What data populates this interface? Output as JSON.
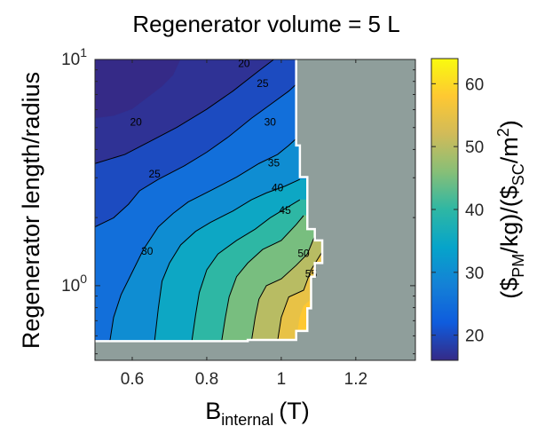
{
  "chart_data": {
    "type": "heatmap",
    "title": "Regenerator volume = 5 L",
    "xlabel": {
      "main": "B",
      "sub": "internal",
      "unit": "(T)"
    },
    "ylabel": "Regenerator length/radius",
    "colorbar_label": {
      "p1": "($",
      "s1": "PM",
      "p2": "/kg)/($",
      "s2": "SC",
      "p3": "/m",
      "sup": "2",
      "p4": ")"
    },
    "xlim": [
      0.5,
      1.36
    ],
    "ylim_log10": [
      -0.33,
      1.0
    ],
    "yscale": "log",
    "colormap": "parula",
    "clim": [
      16,
      64
    ],
    "x_ticks": [
      {
        "value": 0.6,
        "label": "0.6"
      },
      {
        "value": 0.8,
        "label": "0.8"
      },
      {
        "value": 1.0,
        "label": "1"
      },
      {
        "value": 1.2,
        "label": "1.2"
      }
    ],
    "y_ticks": [
      {
        "log": 0,
        "base": "10",
        "exp": "0"
      },
      {
        "log": 1,
        "base": "10",
        "exp": "1"
      }
    ],
    "colorbar_ticks": [
      {
        "value": 20,
        "label": "20"
      },
      {
        "value": 30,
        "label": "30"
      },
      {
        "value": 40,
        "label": "40"
      },
      {
        "value": 50,
        "label": "50"
      },
      {
        "value": 60,
        "label": "60"
      }
    ],
    "valid_region_boundary": [
      [
        1.04,
        1.0
      ],
      [
        1.04,
        0.62
      ],
      [
        1.05,
        0.62
      ],
      [
        1.05,
        0.48
      ],
      [
        1.07,
        0.48
      ],
      [
        1.07,
        0.25
      ],
      [
        1.09,
        0.25
      ],
      [
        1.09,
        0.2
      ],
      [
        1.11,
        0.2
      ],
      [
        1.11,
        0.1
      ],
      [
        1.09,
        0.1
      ],
      [
        1.09,
        0.04
      ],
      [
        1.08,
        0.04
      ],
      [
        1.08,
        -0.1
      ],
      [
        1.07,
        -0.1
      ],
      [
        1.07,
        -0.2
      ],
      [
        1.04,
        -0.2
      ],
      [
        1.04,
        -0.24
      ],
      [
        0.91,
        -0.24
      ],
      [
        0.91,
        -0.245
      ],
      [
        0.5,
        -0.245
      ]
    ],
    "filled_levels": [
      {
        "v": 17,
        "line": [
          [
            0.5,
            0.74
          ],
          [
            0.55,
            0.75
          ],
          [
            0.6,
            0.78
          ],
          [
            0.64,
            0.83
          ],
          [
            0.68,
            0.88
          ],
          [
            0.71,
            0.93
          ],
          [
            0.73,
            1.0
          ]
        ]
      },
      {
        "v": 20,
        "line": [
          [
            0.5,
            0.54
          ],
          [
            0.58,
            0.58
          ],
          [
            0.65,
            0.64
          ],
          [
            0.72,
            0.7
          ],
          [
            0.8,
            0.78
          ],
          [
            0.87,
            0.86
          ],
          [
            0.94,
            0.95
          ],
          [
            0.98,
            1.0
          ]
        ]
      },
      {
        "v": 25,
        "line": [
          [
            0.5,
            0.26
          ],
          [
            0.55,
            0.3
          ],
          [
            0.59,
            0.36
          ],
          [
            0.62,
            0.42
          ],
          [
            0.67,
            0.47
          ],
          [
            0.74,
            0.53
          ],
          [
            0.8,
            0.59
          ],
          [
            0.86,
            0.66
          ],
          [
            0.92,
            0.74
          ],
          [
            0.97,
            0.8
          ],
          [
            1.02,
            0.86
          ],
          [
            1.04,
            0.89
          ]
        ]
      },
      {
        "v": 30,
        "line": [
          [
            0.54,
            -0.245
          ],
          [
            0.55,
            -0.14
          ],
          [
            0.57,
            -0.04
          ],
          [
            0.6,
            0.06
          ],
          [
            0.63,
            0.16
          ],
          [
            0.67,
            0.26
          ],
          [
            0.71,
            0.32
          ],
          [
            0.75,
            0.37
          ],
          [
            0.81,
            0.42
          ],
          [
            0.88,
            0.48
          ],
          [
            0.94,
            0.54
          ],
          [
            0.99,
            0.58
          ],
          [
            1.02,
            0.62
          ],
          [
            1.04,
            0.65
          ]
        ]
      },
      {
        "v": 35,
        "line": [
          [
            0.66,
            -0.245
          ],
          [
            0.67,
            -0.1
          ],
          [
            0.68,
            0.02
          ],
          [
            0.7,
            0.1
          ],
          [
            0.73,
            0.18
          ],
          [
            0.77,
            0.24
          ],
          [
            0.81,
            0.28
          ],
          [
            0.87,
            0.33
          ],
          [
            0.92,
            0.38
          ],
          [
            0.96,
            0.41
          ],
          [
            1.01,
            0.44
          ],
          [
            1.05,
            0.47
          ]
        ]
      },
      {
        "v": 40,
        "line": [
          [
            0.76,
            -0.245
          ],
          [
            0.77,
            -0.13
          ],
          [
            0.78,
            -0.03
          ],
          [
            0.8,
            0.07
          ],
          [
            0.83,
            0.14
          ],
          [
            0.88,
            0.2
          ],
          [
            0.93,
            0.25
          ],
          [
            0.97,
            0.3
          ],
          [
            1.01,
            0.34
          ],
          [
            1.05,
            0.38
          ]
        ]
      },
      {
        "v": 45,
        "line": [
          [
            0.84,
            -0.245
          ],
          [
            0.85,
            -0.14
          ],
          [
            0.86,
            -0.05
          ],
          [
            0.88,
            0.04
          ],
          [
            0.91,
            0.1
          ],
          [
            0.95,
            0.16
          ],
          [
            1.0,
            0.2
          ],
          [
            1.04,
            0.27
          ],
          [
            1.06,
            0.31
          ]
        ]
      },
      {
        "v": 50,
        "line": [
          [
            0.92,
            -0.245
          ],
          [
            0.93,
            -0.14
          ],
          [
            0.94,
            -0.06
          ],
          [
            0.96,
            0.0
          ],
          [
            1.0,
            0.03
          ],
          [
            1.04,
            0.09
          ],
          [
            1.07,
            0.14
          ],
          [
            1.09,
            0.22
          ]
        ]
      },
      {
        "v": 55,
        "line": [
          [
            0.99,
            -0.245
          ],
          [
            1.0,
            -0.14
          ],
          [
            1.02,
            -0.05
          ],
          [
            1.06,
            -0.02
          ],
          [
            1.08,
            0.07
          ],
          [
            1.11,
            0.15
          ]
        ]
      },
      {
        "v": 58,
        "line": [
          [
            1.04,
            -0.245
          ],
          [
            1.05,
            -0.14
          ],
          [
            1.06,
            -0.09
          ],
          [
            1.08,
            -0.06
          ]
        ]
      },
      {
        "v": 61,
        "line": [
          [
            1.06,
            -0.22
          ],
          [
            1.07,
            -0.17
          ],
          [
            1.08,
            -0.14
          ]
        ]
      }
    ],
    "contour_lines": [
      {
        "v": 20,
        "line": [
          [
            0.5,
            0.54
          ],
          [
            0.58,
            0.58
          ],
          [
            0.65,
            0.64
          ],
          [
            0.72,
            0.7
          ],
          [
            0.8,
            0.78
          ],
          [
            0.87,
            0.86
          ],
          [
            0.94,
            0.95
          ],
          [
            0.98,
            1.0
          ]
        ]
      },
      {
        "v": 25,
        "line": [
          [
            0.5,
            0.26
          ],
          [
            0.55,
            0.3
          ],
          [
            0.59,
            0.36
          ],
          [
            0.62,
            0.42
          ],
          [
            0.67,
            0.47
          ],
          [
            0.74,
            0.53
          ],
          [
            0.8,
            0.59
          ],
          [
            0.86,
            0.66
          ],
          [
            0.92,
            0.74
          ],
          [
            0.97,
            0.8
          ],
          [
            1.02,
            0.86
          ],
          [
            1.04,
            0.89
          ]
        ]
      },
      {
        "v": 30,
        "line": [
          [
            0.54,
            -0.245
          ],
          [
            0.55,
            -0.14
          ],
          [
            0.57,
            -0.04
          ],
          [
            0.6,
            0.06
          ],
          [
            0.63,
            0.16
          ],
          [
            0.67,
            0.26
          ],
          [
            0.71,
            0.32
          ],
          [
            0.75,
            0.37
          ],
          [
            0.81,
            0.42
          ],
          [
            0.88,
            0.48
          ],
          [
            0.94,
            0.54
          ],
          [
            0.99,
            0.58
          ],
          [
            1.02,
            0.62
          ],
          [
            1.04,
            0.65
          ]
        ]
      },
      {
        "v": 35,
        "line": [
          [
            0.66,
            -0.245
          ],
          [
            0.67,
            -0.1
          ],
          [
            0.68,
            0.02
          ],
          [
            0.7,
            0.1
          ],
          [
            0.73,
            0.18
          ],
          [
            0.77,
            0.24
          ],
          [
            0.81,
            0.28
          ],
          [
            0.87,
            0.33
          ],
          [
            0.92,
            0.38
          ],
          [
            0.96,
            0.41
          ],
          [
            1.01,
            0.44
          ],
          [
            1.05,
            0.47
          ]
        ]
      },
      {
        "v": 40,
        "line": [
          [
            0.76,
            -0.245
          ],
          [
            0.77,
            -0.13
          ],
          [
            0.78,
            -0.03
          ],
          [
            0.8,
            0.07
          ],
          [
            0.83,
            0.14
          ],
          [
            0.88,
            0.2
          ],
          [
            0.93,
            0.25
          ],
          [
            0.97,
            0.3
          ],
          [
            1.01,
            0.34
          ],
          [
            1.05,
            0.38
          ]
        ]
      },
      {
        "v": 45,
        "line": [
          [
            0.84,
            -0.245
          ],
          [
            0.85,
            -0.14
          ],
          [
            0.86,
            -0.05
          ],
          [
            0.88,
            0.04
          ],
          [
            0.91,
            0.1
          ],
          [
            0.95,
            0.16
          ],
          [
            1.0,
            0.2
          ],
          [
            1.04,
            0.27
          ],
          [
            1.06,
            0.31
          ]
        ]
      },
      {
        "v": 50,
        "line": [
          [
            0.92,
            -0.245
          ],
          [
            0.93,
            -0.14
          ],
          [
            0.94,
            -0.06
          ],
          [
            0.96,
            0.0
          ],
          [
            1.0,
            0.03
          ],
          [
            1.04,
            0.09
          ],
          [
            1.07,
            0.14
          ],
          [
            1.09,
            0.22
          ]
        ]
      },
      {
        "v": 55,
        "line": [
          [
            0.99,
            -0.245
          ],
          [
            1.0,
            -0.14
          ],
          [
            1.02,
            -0.05
          ],
          [
            1.06,
            -0.02
          ],
          [
            1.08,
            0.07
          ],
          [
            1.11,
            0.15
          ]
        ]
      }
    ],
    "contour_labels": [
      {
        "text": "20",
        "x": 0.61,
        "y": 0.72
      },
      {
        "text": "20",
        "x": 0.9,
        "y": 0.98
      },
      {
        "text": "25",
        "x": 0.95,
        "y": 0.89
      },
      {
        "text": "25",
        "x": 0.66,
        "y": 0.49
      },
      {
        "text": "30",
        "x": 0.97,
        "y": 0.72
      },
      {
        "text": "30",
        "x": 0.64,
        "y": 0.15
      },
      {
        "text": "35",
        "x": 0.98,
        "y": 0.54
      },
      {
        "text": "40",
        "x": 0.99,
        "y": 0.43
      },
      {
        "text": "45",
        "x": 1.01,
        "y": 0.33
      },
      {
        "text": "50",
        "x": 1.06,
        "y": 0.14
      },
      {
        "text": "55",
        "x": 1.08,
        "y": 0.05
      }
    ],
    "colors": {
      "invalid_region": "#8f9e9b",
      "white_gap": "#ffffff"
    }
  }
}
